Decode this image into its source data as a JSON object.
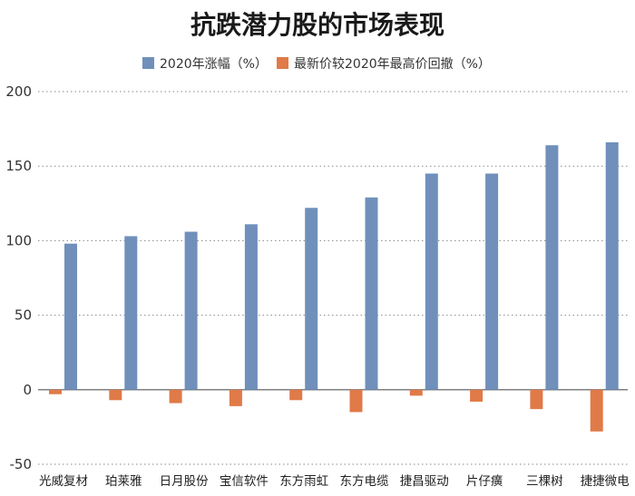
{
  "chart_data": {
    "type": "bar",
    "title": "抗跌潜力股的市场表现",
    "categories": [
      "光威复材",
      "珀莱雅",
      "日月股份",
      "宝信软件",
      "东方雨虹",
      "东方电缆",
      "捷昌驱动",
      "片仔癀",
      "三棵树",
      "捷捷微电"
    ],
    "series": [
      {
        "name": "2020年涨幅（%）",
        "color": "#7090bb",
        "values": [
          98,
          103,
          106,
          111,
          122,
          129,
          145,
          145,
          164,
          166
        ]
      },
      {
        "name": "最新价较2020年最高价回撤（%）",
        "color": "#e07a48",
        "values": [
          -3,
          -7,
          -9,
          -11,
          -7,
          -15,
          -4,
          -8,
          -13,
          -28
        ]
      }
    ],
    "ylim": [
      -50,
      200
    ],
    "yticks": [
      -50,
      0,
      50,
      100,
      150,
      200
    ],
    "grid": true,
    "legend_position": "top-center",
    "xlabel": "",
    "ylabel": ""
  }
}
